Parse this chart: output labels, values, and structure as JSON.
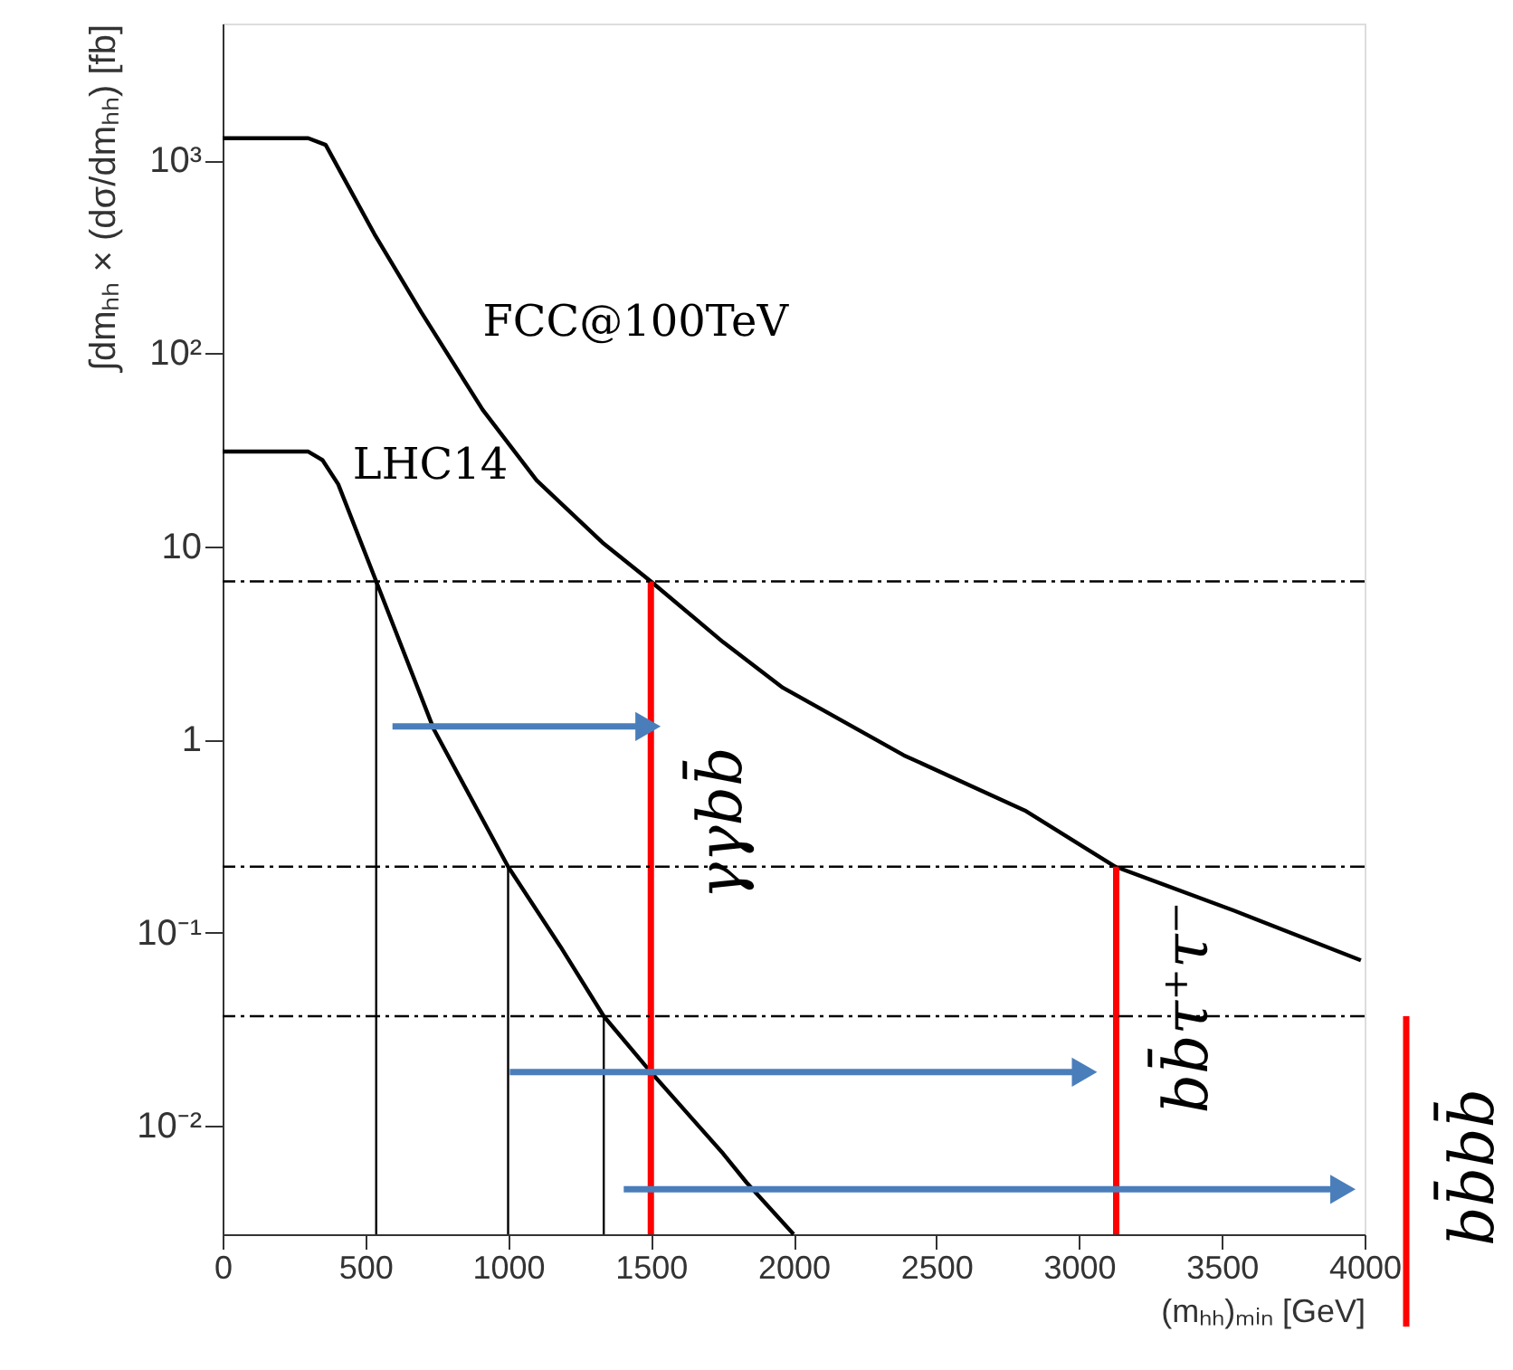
{
  "chart_data": {
    "type": "line",
    "xlabel": "(mₕₕ)ₘᵢₙ [GeV]",
    "ylabel": "∫dmₕₕ × (dσ/dmₕₕ) [fb]",
    "log": "y",
    "grid": false,
    "marker": "none",
    "line_style": "solid",
    "xlim": [
      0,
      4000
    ],
    "xticks": [
      0,
      500,
      1000,
      1500,
      2000,
      2500,
      3000,
      3500,
      4000
    ],
    "ylim": [
      0.00275,
      5100
    ],
    "yticks": [
      {
        "value": 0.01,
        "label": "10⁻²"
      },
      {
        "value": 0.1,
        "label": "10⁻¹"
      },
      {
        "value": 1,
        "label": "1"
      },
      {
        "value": 10,
        "label": "10"
      },
      {
        "value": 100,
        "label": "10²"
      },
      {
        "value": 1000,
        "label": "10³"
      }
    ],
    "series": [
      {
        "name": "FCC@100TeV",
        "color": "#000000",
        "x": [
          0,
          300,
          361,
          532,
          696,
          911,
          1100,
          1330,
          1500,
          1753,
          1962,
          2386,
          2810,
          3127,
          3544,
          3987
        ],
        "values": [
          1300,
          1300,
          1200,
          414,
          163,
          51,
          22,
          10.5,
          6.6,
          3.2,
          1.86,
          0.83,
          0.43,
          0.22,
          0.13,
          0.072
        ]
      },
      {
        "name": "LHC14",
        "color": "#000000",
        "x": [
          0,
          300,
          350,
          405,
          538,
          740,
          1000,
          1183,
          1335,
          1500,
          1753,
          1835,
          2000
        ],
        "values": [
          31,
          31,
          28,
          21,
          6.6,
          1.13,
          0.22,
          0.085,
          0.037,
          0.019,
          0.0072,
          0.0051,
          0.00275
        ]
      },
      {
        "color": "#000000",
        "x": [
          538,
          538
        ],
        "values": [
          6.6,
          0.00275
        ]
      },
      {
        "color": "#000000",
        "x": [
          1000,
          1000
        ],
        "values": [
          0.22,
          0.00275
        ]
      },
      {
        "color": "#000000",
        "x": [
          1335,
          1335
        ],
        "values": [
          0.037,
          0.00275
        ]
      },
      {
        "color": "#ff0000",
        "x": [
          1500,
          1500
        ],
        "values": [
          6.6,
          0.00275
        ]
      },
      {
        "color": "#ff0000",
        "x": [
          3130,
          3130
        ],
        "values": [
          0.22,
          0.00275
        ]
      },
      {
        "color": "#4a7ebb",
        "marker": "triangle",
        "x": [
          595,
          1490
        ],
        "values": [
          1.17,
          1.17
        ]
      },
      {
        "color": "#4a7ebb",
        "marker": "triangle",
        "x": [
          1006,
          3019
        ],
        "values": [
          0.019,
          0.019
        ]
      },
      {
        "color": "#4a7ebb",
        "marker": "triangle",
        "x": [
          1405,
          3924
        ],
        "values": [
          0.0047,
          0.0047
        ]
      }
    ],
    "ref_lines": [
      {
        "axis": "y",
        "value": 6.6,
        "color": "#000000",
        "line_style": "dashed"
      },
      {
        "axis": "y",
        "value": 0.22,
        "color": "#000000",
        "line_style": "dashed"
      },
      {
        "axis": "y",
        "value": 0.037,
        "color": "#000000",
        "line_style": "dashed"
      }
    ],
    "annotations": [
      {
        "text": "γγbb̄",
        "x": 1500,
        "y": 0.37
      },
      {
        "text": "bb̄τ⁺τ⁻",
        "x": 3130,
        "y": 0.041
      },
      "bb̄bb̄"
    ]
  }
}
